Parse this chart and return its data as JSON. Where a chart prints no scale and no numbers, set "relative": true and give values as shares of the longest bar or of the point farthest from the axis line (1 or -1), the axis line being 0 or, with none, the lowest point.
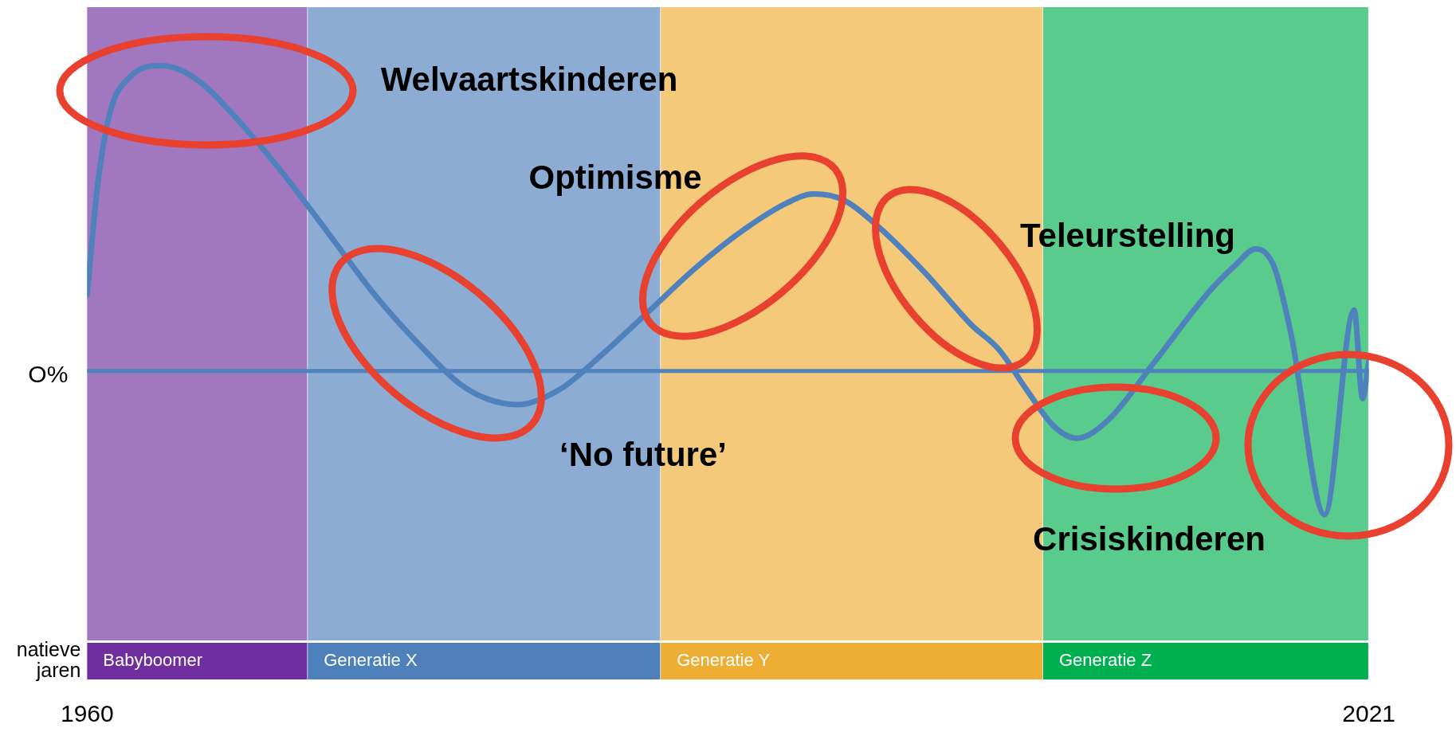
{
  "chart_data": {
    "type": "line",
    "relative": true,
    "xlim": [
      1960,
      2021
    ],
    "xticks": [
      1960,
      2021
    ],
    "grid": false,
    "legend": false,
    "marker": "none",
    "line_style": "solid",
    "tick_labels": "x",
    "x": [
      1960.0,
      1960.5,
      1961.1,
      1962.0,
      1963.5,
      1965.1,
      1967.2,
      1969.4,
      1971.6,
      1973.8,
      1975.9,
      1977.7,
      1979.0,
      1980.5,
      1982.5,
      1984.6,
      1986.8,
      1989.0,
      1991.2,
      1993.3,
      1994.6,
      1996.0,
      1997.7,
      1999.9,
      2002.1,
      2003.4,
      2004.7,
      2006.0,
      2007.1,
      2008.6,
      2010.8,
      2013.4,
      2014.7,
      2015.6,
      2016.5,
      2017.3,
      2018.9,
      2020.3,
      2020.7,
      2021.0
    ],
    "series": [
      {
        "color": "#4f81bd",
        "values": [
          0.25,
          0.61,
          0.85,
          0.96,
          1.0,
          0.96,
          0.82,
          0.64,
          0.44,
          0.24,
          0.08,
          -0.04,
          -0.09,
          -0.11,
          -0.06,
          0.06,
          0.2,
          0.34,
          0.46,
          0.55,
          0.58,
          0.56,
          0.47,
          0.32,
          0.15,
          0.07,
          -0.06,
          -0.18,
          -0.22,
          -0.16,
          0.03,
          0.26,
          0.35,
          0.4,
          0.34,
          0.12,
          -0.47,
          0.2,
          -0.09,
          0.03
        ]
      }
    ],
    "ref_lines": [
      {
        "axis": "y",
        "value": 0,
        "label": "O%",
        "color": "#4f81bd"
      }
    ],
    "bands": [
      {
        "axis": "x",
        "from": 1960,
        "to": 1970.5,
        "label": "Babyboomer",
        "color": "#6e2e9e"
      },
      {
        "axis": "x",
        "from": 1970.5,
        "to": 1987.3,
        "label": "Generatie X",
        "color": "#4e80bc"
      },
      {
        "axis": "x",
        "from": 1987.3,
        "to": 2005.5,
        "label": "Generatie Y",
        "color": "#eeae33"
      },
      {
        "axis": "x",
        "from": 2005.5,
        "to": 2021,
        "label": "Generatie Z",
        "color": "#00b050"
      }
    ],
    "annotations": [
      "Welvaartskinderen",
      "Optimisme",
      "‘No future’",
      "Teleurstelling",
      "Crisiskinderen",
      "natieve jaren"
    ]
  }
}
